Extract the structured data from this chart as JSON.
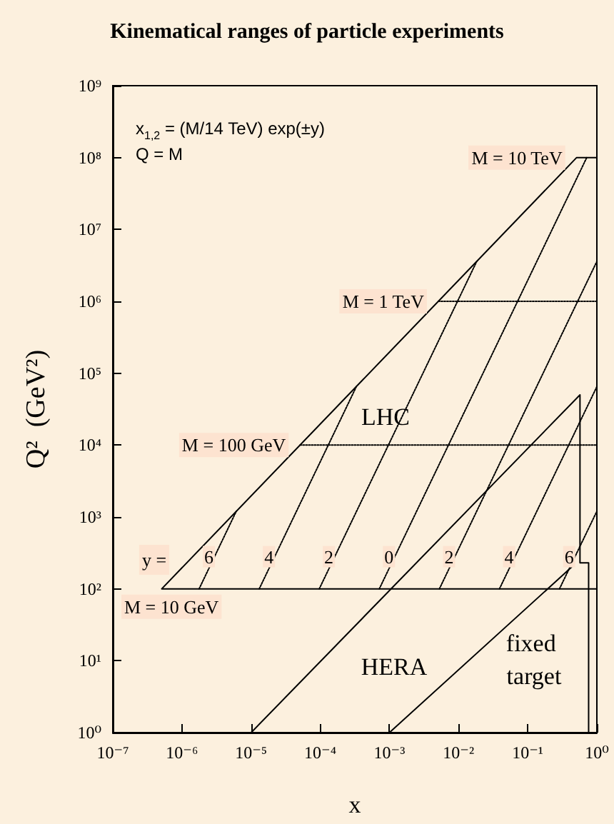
{
  "chart_data": {
    "type": "line",
    "title": "Kinematical ranges of particle experiments",
    "xlabel": "x",
    "ylabel": "Q²  (GeV²)",
    "log": "xy",
    "grid": false,
    "marker": "none",
    "line_style": "solid",
    "xlim": [
      1e-07,
      1
    ],
    "ylim": [
      1,
      1000000000.0
    ],
    "xticks": [
      {
        "value": 1e-07,
        "label": "10⁻⁷"
      },
      {
        "value": 1e-06,
        "label": "10⁻⁶"
      },
      {
        "value": 1e-05,
        "label": "10⁻⁵"
      },
      {
        "value": 0.0001,
        "label": "10⁻⁴"
      },
      {
        "value": 0.001,
        "label": "10⁻³"
      },
      {
        "value": 0.01,
        "label": "10⁻²"
      },
      {
        "value": 0.1,
        "label": "10⁻¹"
      },
      {
        "value": 1,
        "label": "10⁰"
      }
    ],
    "yticks": [
      {
        "value": 1,
        "label": "10⁰"
      },
      {
        "value": 10,
        "label": "10¹"
      },
      {
        "value": 100,
        "label": "10²"
      },
      {
        "value": 1000,
        "label": "10³"
      },
      {
        "value": 10000,
        "label": "10⁴"
      },
      {
        "value": 100000,
        "label": "10⁵"
      },
      {
        "value": 1000000,
        "label": "10⁶"
      },
      {
        "value": 10000000,
        "label": "10⁷"
      },
      {
        "value": 100000000,
        "label": "10⁸"
      },
      {
        "value": 1000000000,
        "label": "10⁹"
      }
    ],
    "series": [
      {
        "color": "#000000",
        "x": [
          1,
          5.1e-07,
          0.51,
          1
        ],
        "values": [
          100,
          100,
          100000000,
          100000000
        ]
      },
      {
        "color": "#000000",
        "x": [
          1e-05,
          0.57,
          0.57,
          0.76,
          0.76
        ],
        "values": [
          1,
          50000,
          230,
          230,
          1
        ]
      },
      {
        "color": "#000000",
        "x": [
          0.001,
          0.43
        ],
        "values": [
          1,
          200
        ]
      },
      {
        "color": "#000000",
        "line_style": "dotted",
        "x": [
          0.0051,
          1
        ],
        "values": [
          1000000,
          1000000
        ]
      },
      {
        "color": "#000000",
        "line_style": "dotted",
        "x": [
          5.1e-05,
          1
        ],
        "values": [
          10000,
          10000
        ]
      },
      {
        "color": "#000000",
        "line_style": "dotted",
        "x": [
          1.77e-06,
          6.1e-06
        ],
        "values": [
          100,
          1200
        ]
      },
      {
        "color": "#000000",
        "line_style": "dotted",
        "x": [
          1.31e-05,
          0.000335
        ],
        "values": [
          100,
          66000
        ]
      },
      {
        "color": "#000000",
        "line_style": "dotted",
        "x": [
          9.67e-05,
          0.0183
        ],
        "values": [
          100,
          3590000
        ]
      },
      {
        "color": "#000000",
        "line_style": "dotted",
        "x": [
          0.000714,
          0.714
        ],
        "values": [
          100,
          100000000
        ]
      },
      {
        "color": "#000000",
        "line_style": "dotted",
        "x": [
          0.00528,
          1
        ],
        "values": [
          100,
          3590000
        ]
      },
      {
        "color": "#000000",
        "line_style": "dotted",
        "x": [
          0.039,
          1
        ],
        "values": [
          100,
          65000
        ]
      },
      {
        "color": "#000000",
        "line_style": "dotted",
        "x": [
          0.288,
          1
        ],
        "values": [
          100,
          1200
        ]
      }
    ],
    "annotations": [
      "x$_{1,2}$ = (M/14 TeV) exp(±y)",
      "Q = M",
      "y =",
      "LHC",
      "HERA",
      "fixed target",
      {
        "text": "M = 10 TeV",
        "x": 0.51,
        "y": 100000000
      },
      {
        "text": "M = 1 TeV",
        "x": 0.0051,
        "y": 1000000
      },
      {
        "text": "M = 100 GeV",
        "x": 5.1e-05,
        "y": 10000
      },
      {
        "text": "M = 10 GeV",
        "x": 5.1e-07,
        "y": 100
      },
      {
        "text": "6",
        "x": 2.96e-06,
        "y": 280
      },
      {
        "text": "4",
        "x": 2.19e-05,
        "y": 280
      },
      {
        "text": "2",
        "x": 0.000161,
        "y": 280
      },
      {
        "text": "0",
        "x": 0.00119,
        "y": 280
      },
      {
        "text": "2",
        "x": 0.00882,
        "y": 280
      },
      {
        "text": "4",
        "x": 0.0651,
        "y": 280
      },
      {
        "text": "6",
        "x": 0.481,
        "y": 280
      }
    ]
  }
}
